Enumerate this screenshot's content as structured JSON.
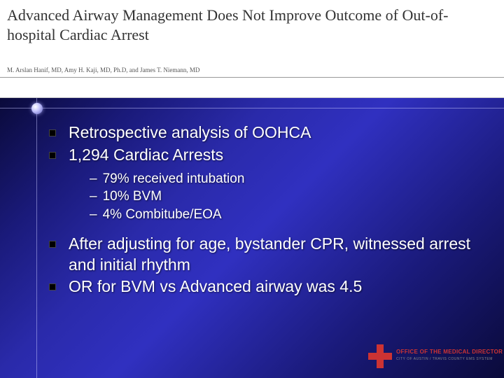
{
  "header": {
    "title": "Advanced Airway Management Does Not Improve Outcome of Out-of-hospital Cardiac Arrest",
    "authors": "M. Arslan Hanif, MD, Amy H. Kaji, MD, Ph.D, and James T. Niemann, MD"
  },
  "bullets": [
    {
      "text": "Retrospective analysis of OOHCA"
    },
    {
      "text": "1,294 Cardiac Arrests"
    }
  ],
  "sub_bullets": [
    {
      "text": " 79% received intubation"
    },
    {
      "text": "10% BVM"
    },
    {
      "text": "4% Combitube/EOA"
    }
  ],
  "bullets2": [
    {
      "text": "After adjusting for age, bystander CPR, witnessed arrest and initial rhythm"
    },
    {
      "text": "OR for BVM vs Advanced airway was 4.5"
    }
  ],
  "logo": {
    "main": "OFFICE OF THE MEDICAL DIRECTOR",
    "sub": "CITY OF AUSTIN / TRAVIS COUNTY EMS SYSTEM",
    "cross_color": "#cc3333"
  },
  "style": {
    "bg_gradient_colors": [
      "#0a0a3a",
      "#1a1a7a",
      "#2a2aaa",
      "#3030c0"
    ],
    "text_color": "#ffffff",
    "bullet_fontsize_pt": 23,
    "sub_bullet_fontsize_pt": 19,
    "header_title_fontsize_pt": 22,
    "header_title_color": "#333333",
    "header_authors_fontsize_pt": 9
  }
}
